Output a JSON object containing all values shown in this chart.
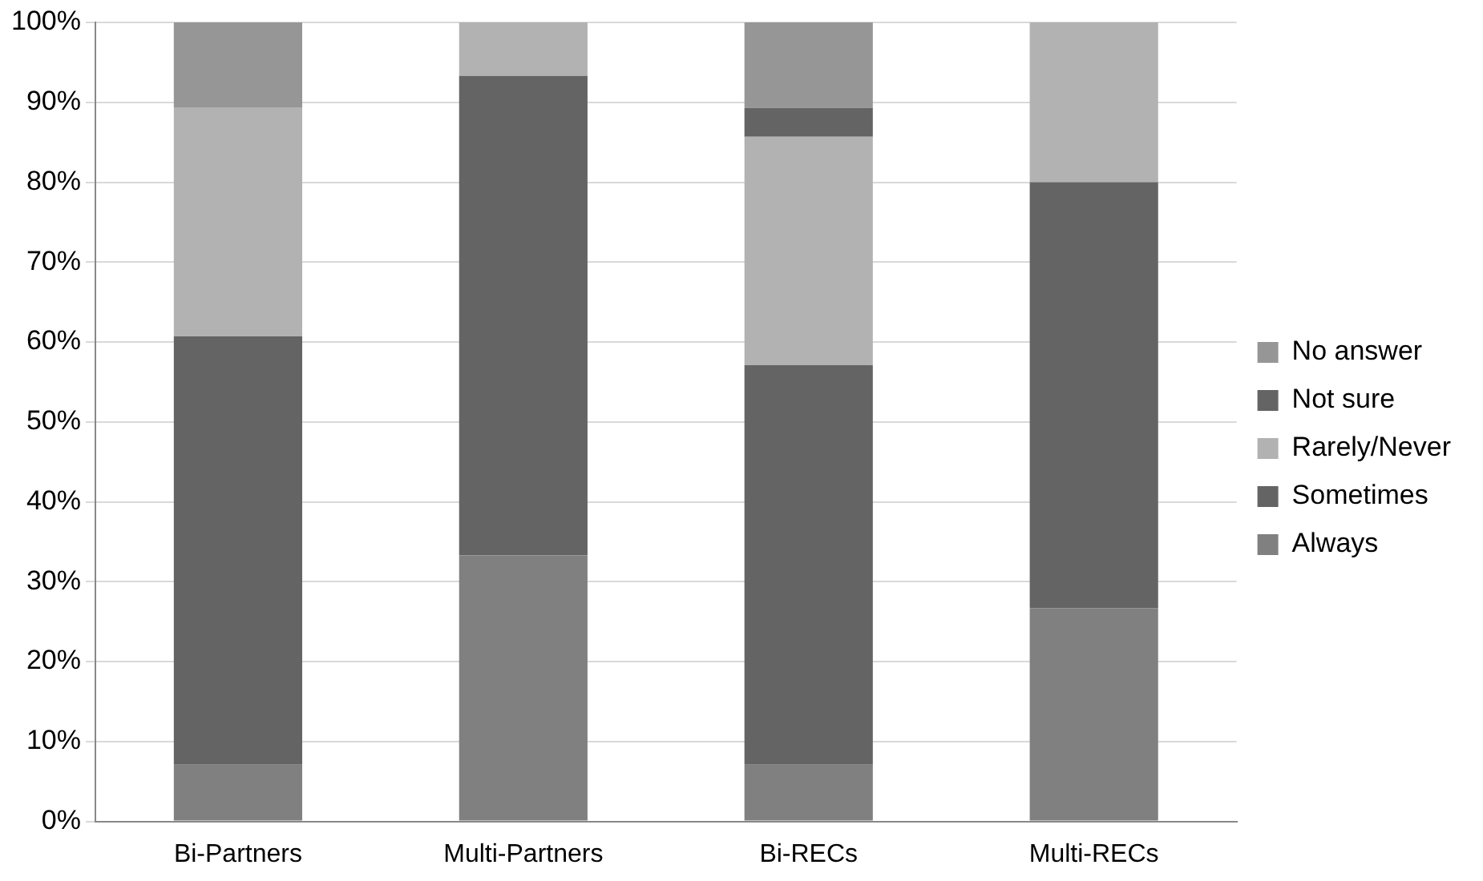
{
  "chart_data": {
    "type": "bar",
    "stacked": true,
    "categories": [
      "Bi-Partners",
      "Multi-Partners",
      "Bi-RECs",
      "Multi-RECs"
    ],
    "series": [
      {
        "name": "Always",
        "color": "#808080",
        "values": [
          7.1,
          33.3,
          7.1,
          26.7
        ]
      },
      {
        "name": "Sometimes",
        "color": "#646464",
        "values": [
          53.6,
          60,
          50,
          53.3
        ]
      },
      {
        "name": "Rarely/Never",
        "color": "#b2b2b2",
        "values": [
          28.6,
          6.7,
          28.6,
          20
        ]
      },
      {
        "name": "Not sure",
        "color": "#646464",
        "values": [
          0,
          0,
          3.6,
          0
        ]
      },
      {
        "name": "No answer",
        "color": "#969696",
        "values": [
          10.7,
          0,
          10.7,
          0
        ]
      }
    ],
    "ylim": [
      0,
      100
    ],
    "yticks": [
      {
        "value": 0,
        "label": "0%"
      },
      {
        "value": 10,
        "label": "10%"
      },
      {
        "value": 20,
        "label": "20%"
      },
      {
        "value": 30,
        "label": "30%"
      },
      {
        "value": 40,
        "label": "40%"
      },
      {
        "value": 50,
        "label": "50%"
      },
      {
        "value": 60,
        "label": "60%"
      },
      {
        "value": 70,
        "label": "70%"
      },
      {
        "value": 80,
        "label": "80%"
      },
      {
        "value": 90,
        "label": "90%"
      },
      {
        "value": 100,
        "label": "100%"
      }
    ],
    "grid": "y",
    "legend": "right"
  }
}
